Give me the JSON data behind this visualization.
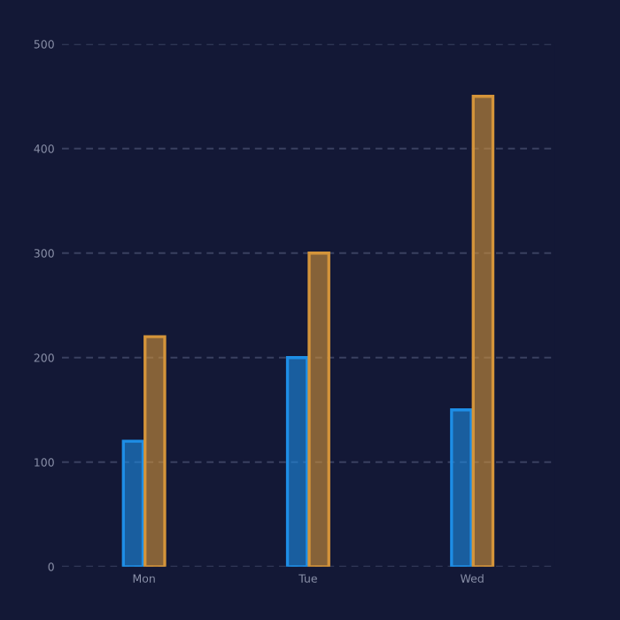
{
  "chart_data": {
    "type": "bar",
    "categories": [
      "Mon",
      "Tue",
      "Wed"
    ],
    "series": [
      {
        "color": "#1e8ee6",
        "values": [
          120,
          200,
          150
        ]
      },
      {
        "color": "#d4943a",
        "values": [
          220,
          300,
          450
        ]
      }
    ],
    "ylim": [
      0,
      500
    ],
    "yticks": [
      0,
      100,
      200,
      300,
      400,
      500
    ],
    "grid": "y"
  }
}
